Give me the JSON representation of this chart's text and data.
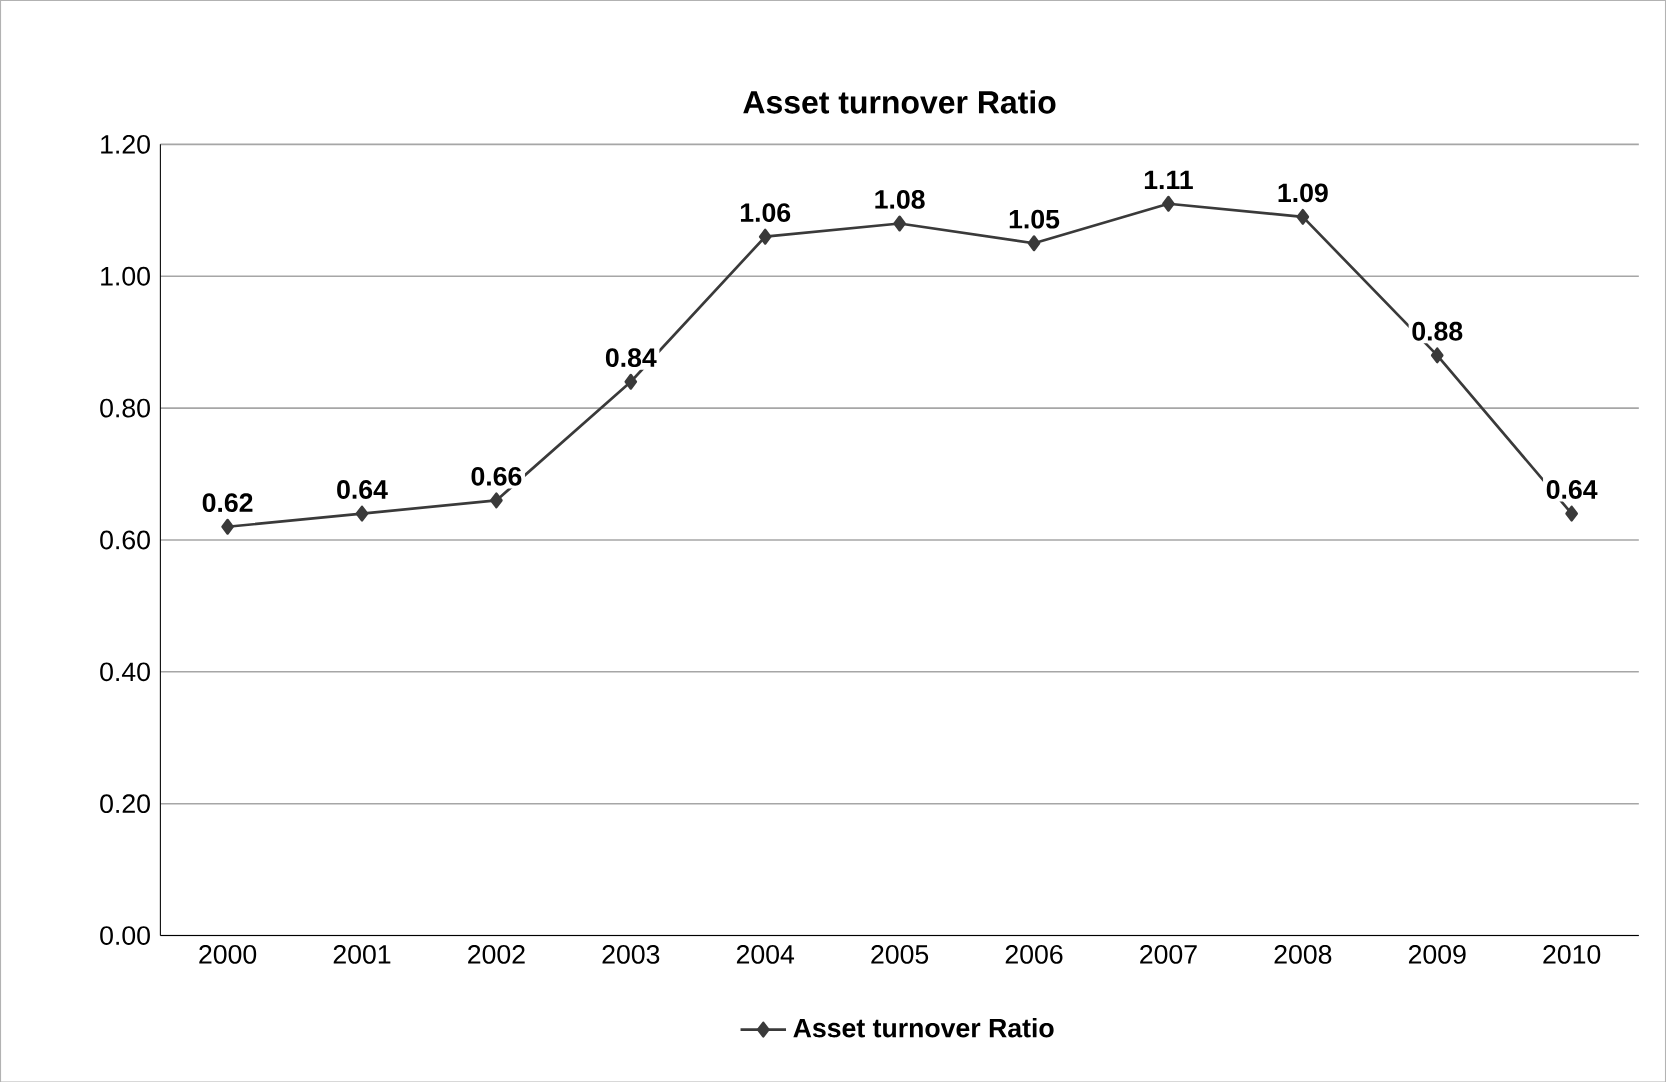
{
  "chart_data": {
    "type": "line",
    "title": "Asset turnover Ratio",
    "categories": [
      "2000",
      "2001",
      "2002",
      "2003",
      "2004",
      "2005",
      "2006",
      "2007",
      "2008",
      "2009",
      "2010"
    ],
    "series": [
      {
        "name": "Asset turnover Ratio",
        "color": "#3a3a3a",
        "values": [
          0.62,
          0.64,
          0.66,
          0.84,
          1.06,
          1.08,
          1.05,
          1.11,
          1.09,
          0.88,
          0.64
        ]
      }
    ],
    "ylim": [
      0,
      1.2
    ],
    "yticks": [
      {
        "value": 0,
        "label": "0.00"
      },
      {
        "value": 0.2,
        "label": "0.20"
      },
      {
        "value": 0.4,
        "label": "0.40"
      },
      {
        "value": 0.6,
        "label": "0.60"
      },
      {
        "value": 0.8,
        "label": "0.80"
      },
      {
        "value": 1.0,
        "label": "1.00"
      },
      {
        "value": 1.2,
        "label": "1.20"
      }
    ],
    "grid": "y",
    "legend": "bottom",
    "marker": "diamond",
    "line_style": "solid",
    "data_labels": true
  }
}
